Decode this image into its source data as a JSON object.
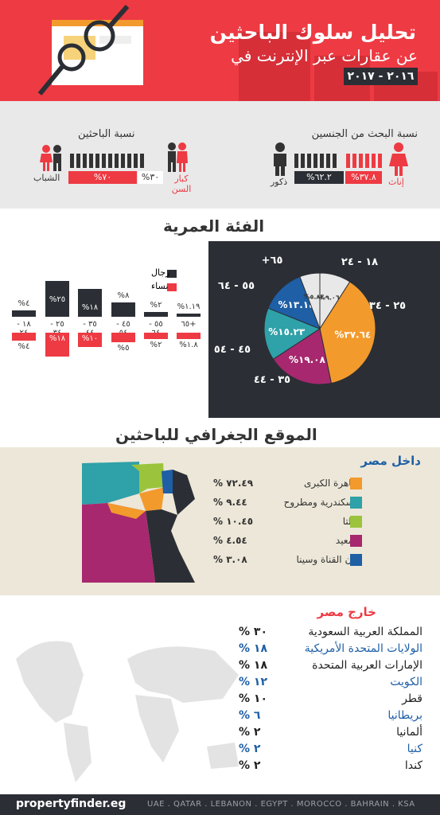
{
  "header": {
    "title": "تحليل سلوك الباحثين",
    "subtitle": "عن عقارات عبر الإنترنت في",
    "years": "٢٠١٦ - ٢٠١٧"
  },
  "gender": {
    "title": "نسبة البحث من الجنسين",
    "female_label": "إناث",
    "male_label": "ذكور",
    "female_pct": "%٣٧.٨",
    "male_pct": "%٦٢.٢"
  },
  "age_groups_head": {
    "title": "نسبة الباحثين",
    "young_label": "الشباب",
    "old_label": "كبار السن",
    "young_pct": "%٧٠",
    "old_pct": "%٣٠"
  },
  "age": {
    "title": "الفئة العمرية",
    "men_label": "رجال",
    "women_label": "نساء",
    "categories": [
      "١٨ - ٢٤",
      "٢٥ - ٣٤",
      "٣٥ - ٤٤",
      "٤٥ - ٥٤",
      "٥٥ - ٦٤",
      "٦٥+"
    ],
    "men_values": [
      "%٤",
      "%٢٥",
      "%١٨",
      "%٨",
      "%٢",
      "%١.١٩"
    ],
    "women_values": [
      "%٤",
      "%١٨",
      "%١٠",
      "%٥",
      "%٢",
      "%١.٨"
    ]
  },
  "chart_data": {
    "type": "pie",
    "categories": [
      "١٨ - ٢٤",
      "٢٥ - ٣٤",
      "٣٥ - ٤٤",
      "٤٥ - ٥٤",
      "٥٥ - ٦٤",
      "+٦٥"
    ],
    "values": [
      9.06,
      37.64,
      19.08,
      15.23,
      13.14,
      5.84
    ],
    "labels": [
      "%٩.٠٦",
      "%٣٧.٦٤",
      "%١٩.٠٨",
      "%١٥.٢٣",
      "%١٣.١٤",
      "%٥.٨٤"
    ],
    "colors": [
      "#e8e8e8",
      "#f39a2c",
      "#a7286e",
      "#2fa1a8",
      "#1e5fa6",
      "#e8e8e8"
    ]
  },
  "geo": {
    "title": "الموقع الجغرافي للباحثين",
    "inside_title": "داخل مصر",
    "inside": [
      {
        "name": "القاهرة الكبرى",
        "pct": "% ٧٢.٤٩",
        "color": "#f39a2c"
      },
      {
        "name": "الإسكندرية ومطروح",
        "pct": "% ٩.٤٤",
        "color": "#2fa1a8"
      },
      {
        "name": "الدلتا",
        "pct": "% ١٠.٤٥",
        "color": "#9bc43c"
      },
      {
        "name": "الصعيد",
        "pct": "% ٤.٥٤",
        "color": "#a7286e"
      },
      {
        "name": "مدن القناة وسينا",
        "pct": "% ٣.٠٨",
        "color": "#1e5fa6"
      }
    ],
    "outside_title": "خارج مصر",
    "outside": [
      {
        "name": "المملكة العربية السعودية",
        "pct": "% ٣٠",
        "color": "#222"
      },
      {
        "name": "الولايات المتحدة الأمريكية",
        "pct": "% ١٨",
        "color": "#1e5fa6"
      },
      {
        "name": "الإمارات العربية المتحدة",
        "pct": "% ١٨",
        "color": "#222"
      },
      {
        "name": "الكويت",
        "pct": "% ١٢",
        "color": "#1e5fa6"
      },
      {
        "name": "قطر",
        "pct": "% ١٠",
        "color": "#222"
      },
      {
        "name": "بريطانيا",
        "pct": "% ٦",
        "color": "#1e5fa6"
      },
      {
        "name": "ألمانيا",
        "pct": "% ٢",
        "color": "#222"
      },
      {
        "name": "كنيا",
        "pct": "% ٢",
        "color": "#1e5fa6"
      },
      {
        "name": "كندا",
        "pct": "% ٢",
        "color": "#222"
      }
    ]
  },
  "footer": {
    "brand": "propertyfinder.eg",
    "countries": "UAE . QATAR . LEBANON . EGYPT . MOROCCO . BAHRAIN . KSA"
  }
}
